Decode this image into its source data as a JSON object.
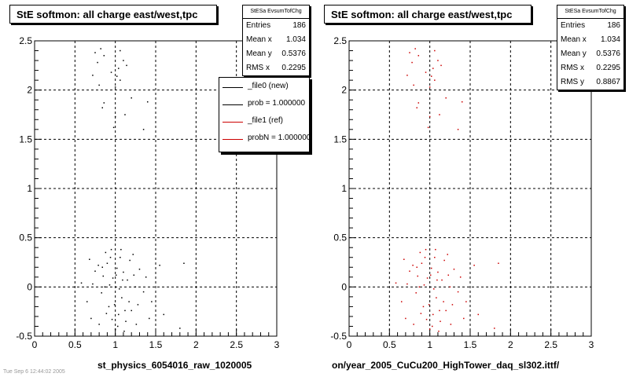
{
  "footer_text": "Tue Sep  6 12:44:02 2005",
  "panels": [
    {
      "title": "StE softmon: all charge east/west,tpc",
      "bottom_label": "st_physics_6054016_raw_1020005",
      "stats": {
        "name": "StESa EvsumTofChg",
        "rows": [
          {
            "label": "Entries",
            "value": "186"
          },
          {
            "label": "Mean x",
            "value": "1.034"
          },
          {
            "label": "Mean y",
            "value": "0.5376"
          },
          {
            "label": "RMS x",
            "value": "0.2295"
          }
        ]
      },
      "legend": [
        {
          "label": "_file0 (new)",
          "color": "#000000"
        },
        {
          "label": "prob = 1.000000",
          "color": "#000000"
        },
        {
          "label": "_file1 (ref)",
          "color": "#cc0000"
        },
        {
          "label": "probN = 1.000000",
          "color": "#cc0000"
        }
      ],
      "marker_color": "#000000"
    },
    {
      "title": "StE softmon: all charge east/west,tpc",
      "bottom_label": "on/year_2005_CuCu200_HighTower_daq_sl302.ittf/",
      "stats": {
        "name": "StESa EvsumTofChg",
        "rows": [
          {
            "label": "Entries",
            "value": "186"
          },
          {
            "label": "Mean x",
            "value": "1.034"
          },
          {
            "label": "Mean y",
            "value": "0.5376"
          },
          {
            "label": "RMS x",
            "value": "0.2295"
          },
          {
            "label": "RMS y",
            "value": "0.8867"
          }
        ]
      },
      "legend": [],
      "marker_color": "#cc0000"
    }
  ],
  "chart_data": [
    {
      "type": "scatter",
      "xlim": [
        0,
        3
      ],
      "ylim": [
        -0.5,
        2.5
      ],
      "x_ticks": [
        "0",
        "0.5",
        "1",
        "1.5",
        "2",
        "2.5",
        "3"
      ],
      "y_ticks": [
        "-0.5",
        "0",
        "0.5",
        "1",
        "1.5",
        "2",
        "2.5"
      ],
      "grid": true,
      "series": [
        {
          "color": "#000000",
          "points": [
            [
              0.75,
              2.38
            ],
            [
              0.82,
              2.42
            ],
            [
              0.78,
              2.28
            ],
            [
              0.86,
              2.35
            ],
            [
              0.95,
              2.18
            ],
            [
              1.06,
              2.4
            ],
            [
              1.1,
              2.3
            ],
            [
              1.04,
              2.22
            ],
            [
              1.14,
              2.25
            ],
            [
              1.02,
              2.14
            ],
            [
              0.72,
              2.15
            ],
            [
              0.8,
              2.05
            ],
            [
              1.0,
              2.03
            ],
            [
              1.06,
              2.1
            ],
            [
              1.2,
              1.92
            ],
            [
              1.12,
              1.75
            ],
            [
              0.86,
              1.87
            ],
            [
              0.84,
              1.82
            ],
            [
              1.0,
              1.73
            ],
            [
              0.98,
              1.62
            ],
            [
              1.35,
              1.6
            ],
            [
              1.4,
              1.88
            ],
            [
              0.58,
              0.04
            ],
            [
              0.68,
              0.28
            ],
            [
              0.72,
              0.03
            ],
            [
              0.75,
              0.16
            ],
            [
              0.8,
              -0.38
            ],
            [
              0.83,
              -0.06
            ],
            [
              0.85,
              0.11
            ],
            [
              0.88,
              0.35
            ],
            [
              0.9,
              0.24
            ],
            [
              0.92,
              -0.2
            ],
            [
              0.95,
              0.38
            ],
            [
              0.97,
              0.09
            ],
            [
              1.0,
              -0.43
            ],
            [
              1.02,
              0.19
            ],
            [
              1.04,
              -0.28
            ],
            [
              1.06,
              0.3
            ],
            [
              1.08,
              -0.11
            ],
            [
              1.1,
              0.15
            ],
            [
              1.13,
              -0.35
            ],
            [
              1.15,
              0.07
            ],
            [
              1.18,
              0.27
            ],
            [
              1.2,
              -0.24
            ],
            [
              1.23,
              0.12
            ],
            [
              1.26,
              -0.38
            ],
            [
              1.3,
              0.18
            ],
            [
              1.35,
              -0.05
            ],
            [
              1.42,
              -0.32
            ],
            [
              1.55,
              0.22
            ],
            [
              1.8,
              -0.42
            ],
            [
              1.85,
              0.24
            ],
            [
              0.65,
              -0.15
            ],
            [
              0.7,
              -0.32
            ],
            [
              0.87,
              0.0
            ],
            [
              0.93,
              0.02
            ],
            [
              1.01,
              0.12
            ],
            [
              1.05,
              -0.02
            ],
            [
              0.99,
              -0.18
            ],
            [
              1.11,
              -0.45
            ],
            [
              0.96,
              -0.33
            ],
            [
              1.17,
              -0.15
            ],
            [
              0.89,
              -0.27
            ],
            [
              1.22,
              0.33
            ],
            [
              1.28,
              -0.18
            ],
            [
              1.38,
              0.1
            ],
            [
              0.79,
              0.22
            ],
            [
              0.84,
              0.2
            ],
            [
              1.07,
              0.38
            ],
            [
              1.09,
              0.07
            ],
            [
              1.12,
              -0.24
            ],
            [
              0.94,
              0.3
            ],
            [
              1.03,
              -0.4
            ],
            [
              1.25,
              0.0
            ],
            [
              1.45,
              -0.15
            ],
            [
              1.6,
              -0.28
            ]
          ]
        }
      ]
    },
    {
      "type": "scatter",
      "xlim": [
        0,
        3
      ],
      "ylim": [
        -0.5,
        2.5
      ],
      "x_ticks": [
        "0",
        "0.5",
        "1",
        "1.5",
        "2",
        "2.5",
        "3"
      ],
      "y_ticks": [
        "-0.5",
        "0",
        "0.5",
        "1",
        "1.5",
        "2",
        "2.5"
      ],
      "grid": true,
      "series": [
        {
          "color": "#cc0000",
          "points": [
            [
              0.75,
              2.38
            ],
            [
              0.82,
              2.42
            ],
            [
              0.78,
              2.28
            ],
            [
              0.86,
              2.35
            ],
            [
              0.95,
              2.18
            ],
            [
              1.06,
              2.4
            ],
            [
              1.1,
              2.3
            ],
            [
              1.04,
              2.22
            ],
            [
              1.14,
              2.25
            ],
            [
              1.02,
              2.14
            ],
            [
              0.72,
              2.15
            ],
            [
              0.8,
              2.05
            ],
            [
              1.0,
              2.03
            ],
            [
              1.06,
              2.1
            ],
            [
              1.2,
              1.92
            ],
            [
              1.12,
              1.75
            ],
            [
              0.86,
              1.87
            ],
            [
              0.84,
              1.82
            ],
            [
              1.0,
              1.73
            ],
            [
              0.98,
              1.62
            ],
            [
              1.35,
              1.6
            ],
            [
              1.4,
              1.88
            ],
            [
              0.58,
              0.04
            ],
            [
              0.68,
              0.28
            ],
            [
              0.72,
              0.03
            ],
            [
              0.75,
              0.16
            ],
            [
              0.8,
              -0.38
            ],
            [
              0.83,
              -0.06
            ],
            [
              0.85,
              0.11
            ],
            [
              0.88,
              0.35
            ],
            [
              0.9,
              0.24
            ],
            [
              0.92,
              -0.2
            ],
            [
              0.95,
              0.38
            ],
            [
              0.97,
              0.09
            ],
            [
              1.0,
              -0.43
            ],
            [
              1.02,
              0.19
            ],
            [
              1.04,
              -0.28
            ],
            [
              1.06,
              0.3
            ],
            [
              1.08,
              -0.11
            ],
            [
              1.1,
              0.15
            ],
            [
              1.13,
              -0.35
            ],
            [
              1.15,
              0.07
            ],
            [
              1.18,
              0.27
            ],
            [
              1.2,
              -0.24
            ],
            [
              1.23,
              0.12
            ],
            [
              1.26,
              -0.38
            ],
            [
              1.3,
              0.18
            ],
            [
              1.35,
              -0.05
            ],
            [
              1.42,
              -0.32
            ],
            [
              1.55,
              0.22
            ],
            [
              1.8,
              -0.42
            ],
            [
              1.85,
              0.24
            ],
            [
              0.65,
              -0.15
            ],
            [
              0.7,
              -0.32
            ],
            [
              0.87,
              0.0
            ],
            [
              0.93,
              0.02
            ],
            [
              1.01,
              0.12
            ],
            [
              1.05,
              -0.02
            ],
            [
              0.99,
              -0.18
            ],
            [
              1.11,
              -0.45
            ],
            [
              0.96,
              -0.33
            ],
            [
              1.17,
              -0.15
            ],
            [
              0.89,
              -0.27
            ],
            [
              1.22,
              0.33
            ],
            [
              1.28,
              -0.18
            ],
            [
              1.38,
              0.1
            ],
            [
              0.79,
              0.22
            ],
            [
              0.84,
              0.2
            ],
            [
              1.07,
              0.38
            ],
            [
              1.09,
              0.07
            ],
            [
              1.12,
              -0.24
            ],
            [
              0.94,
              0.3
            ],
            [
              1.03,
              -0.4
            ],
            [
              1.25,
              0.0
            ],
            [
              1.45,
              -0.15
            ],
            [
              1.6,
              -0.28
            ]
          ]
        }
      ]
    }
  ]
}
